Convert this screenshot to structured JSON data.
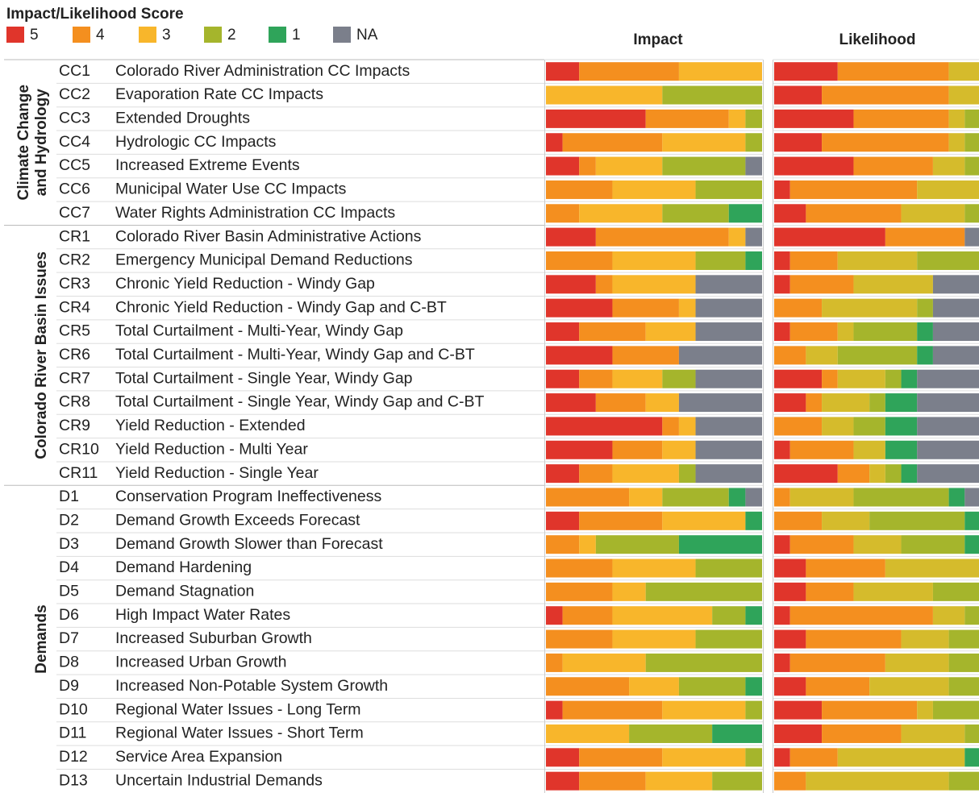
{
  "legend_title": "Impact/Likelihood Score",
  "groups": [
    {
      "label": [
        "Climate Change",
        "and Hydrology"
      ],
      "rows": [
        {
          "code": "CC1",
          "name": "Colorado River Administration CC Impacts"
        },
        {
          "code": "CC2",
          "name": "Evaporation Rate CC Impacts"
        },
        {
          "code": "CC3",
          "name": "Extended Droughts"
        },
        {
          "code": "CC4",
          "name": "Hydrologic CC Impacts"
        },
        {
          "code": "CC5",
          "name": "Increased Extreme Events"
        },
        {
          "code": "CC6",
          "name": "Municipal Water Use CC Impacts"
        },
        {
          "code": "CC7",
          "name": "Water Rights Administration CC Impacts"
        }
      ]
    },
    {
      "label": [
        "Colorado River Basin Issues"
      ],
      "rows": [
        {
          "code": "CR1",
          "name": "Colorado River Basin Administrative Actions"
        },
        {
          "code": "CR2",
          "name": "Emergency Municipal Demand Reductions"
        },
        {
          "code": "CR3",
          "name": "Chronic Yield Reduction - Windy Gap"
        },
        {
          "code": "CR4",
          "name": "Chronic Yield Reduction - Windy Gap and C-BT"
        },
        {
          "code": "CR5",
          "name": "Total Curtailment - Multi-Year, Windy Gap"
        },
        {
          "code": "CR6",
          "name": "Total Curtailment - Multi-Year, Windy Gap and C-BT"
        },
        {
          "code": "CR7",
          "name": "Total Curtailment - Single Year, Windy Gap"
        },
        {
          "code": "CR8",
          "name": "Total Curtailment - Single Year, Windy Gap and C-BT"
        },
        {
          "code": "CR9",
          "name": "Yield Reduction - Extended"
        },
        {
          "code": "CR10",
          "name": "Yield Reduction - Multi Year"
        },
        {
          "code": "CR11",
          "name": "Yield Reduction - Single Year"
        }
      ]
    },
    {
      "label": [
        "Demands"
      ],
      "rows": [
        {
          "code": "D1",
          "name": "Conservation Program Ineffectiveness"
        },
        {
          "code": "D2",
          "name": "Demand Growth Exceeds Forecast"
        },
        {
          "code": "D3",
          "name": "Demand Growth Slower than Forecast"
        },
        {
          "code": "D4",
          "name": "Demand Hardening"
        },
        {
          "code": "D5",
          "name": "Demand Stagnation"
        },
        {
          "code": "D6",
          "name": "High Impact Water Rates"
        },
        {
          "code": "D7",
          "name": "Increased Suburban Growth"
        },
        {
          "code": "D8",
          "name": "Increased Urban Growth"
        },
        {
          "code": "D9",
          "name": "Increased Non-Potable System Growth"
        },
        {
          "code": "D10",
          "name": "Regional Water Issues - Long Term"
        },
        {
          "code": "D11",
          "name": "Regional Water Issues - Short Term"
        },
        {
          "code": "D12",
          "name": "Service Area Expansion"
        },
        {
          "code": "D13",
          "name": "Uncertain Industrial Demands"
        }
      ]
    }
  ],
  "chart_data": [
    {
      "type": "stacked_bar_h",
      "title": "Impact",
      "xlim": [
        0,
        13
      ],
      "series": [
        {
          "name": "5",
          "color": "#e0352b",
          "values": [
            2,
            0,
            6,
            1,
            2,
            0,
            0,
            3,
            0,
            3,
            4,
            2,
            4,
            2,
            3,
            7,
            4,
            2,
            0,
            2,
            0,
            0,
            0,
            1,
            0,
            0,
            0,
            1,
            0,
            2,
            2
          ]
        },
        {
          "name": "4",
          "color": "#f48f1f",
          "values": [
            6,
            0,
            5,
            6,
            1,
            4,
            2,
            8,
            4,
            1,
            4,
            4,
            4,
            2,
            3,
            1,
            3,
            2,
            5,
            5,
            2,
            4,
            4,
            3,
            4,
            1,
            5,
            6,
            0,
            5,
            4
          ]
        },
        {
          "name": "3",
          "color": "#f8b62b",
          "values": [
            5,
            7,
            1,
            5,
            4,
            5,
            5,
            1,
            5,
            5,
            1,
            3,
            0,
            3,
            2,
            1,
            2,
            4,
            2,
            5,
            1,
            5,
            2,
            6,
            5,
            5,
            3,
            5,
            5,
            5,
            4
          ]
        },
        {
          "name": "2",
          "color": "#a5b52c",
          "values": [
            0,
            6,
            1,
            1,
            5,
            4,
            4,
            0,
            3,
            0,
            0,
            0,
            0,
            2,
            0,
            0,
            0,
            1,
            4,
            0,
            5,
            4,
            7,
            2,
            4,
            7,
            4,
            1,
            5,
            1,
            3
          ]
        },
        {
          "name": "1",
          "color": "#2fa45a",
          "values": [
            0,
            0,
            0,
            0,
            0,
            0,
            2,
            0,
            1,
            0,
            0,
            0,
            0,
            0,
            0,
            0,
            0,
            0,
            1,
            1,
            5,
            0,
            0,
            1,
            0,
            0,
            1,
            0,
            3,
            0,
            0
          ]
        },
        {
          "name": "NA",
          "color": "#7b7f8b",
          "values": [
            0,
            0,
            0,
            0,
            1,
            0,
            0,
            1,
            0,
            4,
            4,
            4,
            5,
            4,
            5,
            4,
            4,
            4,
            1,
            0,
            0,
            0,
            0,
            0,
            0,
            0,
            0,
            0,
            0,
            0,
            0
          ]
        }
      ]
    },
    {
      "type": "stacked_bar_h",
      "title": "Likelihood",
      "xlim": [
        0,
        13
      ],
      "series": [
        {
          "name": "5",
          "color": "#e0352b",
          "values": [
            4,
            3,
            5,
            3,
            5,
            1,
            2,
            7,
            1,
            1,
            0,
            1,
            0,
            3,
            2,
            0,
            1,
            4,
            0,
            0,
            1,
            2,
            2,
            1,
            2,
            1,
            2,
            3,
            3,
            1,
            0
          ]
        },
        {
          "name": "4",
          "color": "#f48f1f",
          "values": [
            7,
            8,
            6,
            8,
            5,
            8,
            6,
            5,
            3,
            4,
            3,
            3,
            2,
            1,
            1,
            3,
            4,
            2,
            1,
            3,
            4,
            5,
            3,
            9,
            6,
            6,
            4,
            6,
            5,
            3,
            2
          ]
        },
        {
          "name": "3",
          "color": "#d5bb2c",
          "values": [
            2,
            2,
            1,
            1,
            2,
            4,
            4,
            0,
            5,
            5,
            6,
            1,
            2,
            3,
            3,
            2,
            2,
            1,
            4,
            3,
            3,
            6,
            5,
            2,
            3,
            4,
            5,
            1,
            4,
            8,
            9
          ]
        },
        {
          "name": "2",
          "color": "#a5b52c",
          "values": [
            0,
            0,
            1,
            1,
            1,
            0,
            1,
            0,
            4,
            0,
            1,
            4,
            5,
            1,
            1,
            2,
            0,
            1,
            6,
            6,
            4,
            0,
            3,
            1,
            2,
            2,
            2,
            3,
            1,
            0,
            2
          ]
        },
        {
          "name": "1",
          "color": "#2fa45a",
          "values": [
            0,
            0,
            0,
            0,
            0,
            0,
            0,
            0,
            0,
            0,
            0,
            1,
            1,
            1,
            2,
            2,
            2,
            1,
            1,
            1,
            1,
            0,
            0,
            0,
            0,
            0,
            0,
            0,
            0,
            1,
            0
          ]
        },
        {
          "name": "NA",
          "color": "#7b7f8b",
          "values": [
            0,
            0,
            0,
            0,
            0,
            0,
            0,
            1,
            0,
            3,
            3,
            3,
            3,
            4,
            4,
            4,
            4,
            4,
            1,
            0,
            0,
            0,
            0,
            0,
            0,
            0,
            0,
            0,
            0,
            0,
            0
          ]
        }
      ]
    }
  ]
}
